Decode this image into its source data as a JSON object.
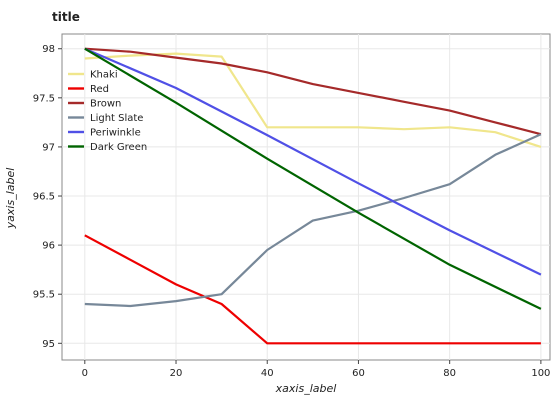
{
  "chart_data": {
    "type": "line",
    "title": "title",
    "xlabel": "xaxis_label",
    "ylabel": "yaxis_label",
    "xlim": [
      -5,
      102
    ],
    "ylim": [
      94.83,
      98.15
    ],
    "x_ticks": [
      0,
      20,
      40,
      60,
      80,
      100
    ],
    "y_ticks": [
      95,
      95.5,
      96,
      96.5,
      97,
      97.5,
      98
    ],
    "x_tick_labels": [
      "0",
      "20",
      "40",
      "60",
      "80",
      "100"
    ],
    "y_tick_labels": [
      "95",
      "95.5",
      "96",
      "96.5",
      "97",
      "97.5",
      "98"
    ],
    "grid": true,
    "legend_position": "left",
    "series": [
      {
        "name": "Khaki",
        "color": "#f0e68c",
        "x": [
          0,
          10,
          20,
          30,
          40,
          50,
          60,
          70,
          80,
          90,
          100
        ],
        "y": [
          97.9,
          97.93,
          97.95,
          97.92,
          97.2,
          97.2,
          97.2,
          97.18,
          97.2,
          97.15,
          97.0
        ]
      },
      {
        "name": "Red",
        "color": "#ee0000",
        "x": [
          0,
          10,
          20,
          30,
          40,
          50,
          60,
          70,
          80,
          90,
          100
        ],
        "y": [
          96.1,
          95.85,
          95.6,
          95.4,
          95.0,
          95.0,
          95.0,
          95.0,
          95.0,
          95.0,
          95.0
        ]
      },
      {
        "name": "Brown",
        "color": "#a52a2a",
        "x": [
          0,
          10,
          20,
          30,
          40,
          50,
          60,
          70,
          80,
          90,
          100
        ],
        "y": [
          98.0,
          97.97,
          97.91,
          97.85,
          97.76,
          97.64,
          97.55,
          97.46,
          97.37,
          97.25,
          97.13
        ]
      },
      {
        "name": "Light Slate",
        "color": "#778899",
        "x": [
          0,
          10,
          20,
          30,
          40,
          50,
          60,
          70,
          80,
          90,
          100
        ],
        "y": [
          95.4,
          95.38,
          95.43,
          95.5,
          95.95,
          96.25,
          96.35,
          96.48,
          96.62,
          96.92,
          97.13
        ]
      },
      {
        "name": "Periwinkle",
        "color": "#5050e6",
        "x": [
          0,
          20,
          40,
          60,
          80,
          100
        ],
        "y": [
          98.0,
          97.6,
          97.12,
          96.63,
          96.15,
          95.7
        ]
      },
      {
        "name": "Dark Green",
        "color": "#006400",
        "x": [
          0,
          20,
          40,
          60,
          80,
          100
        ],
        "y": [
          98.0,
          97.45,
          96.88,
          96.33,
          95.8,
          95.35
        ]
      }
    ]
  }
}
